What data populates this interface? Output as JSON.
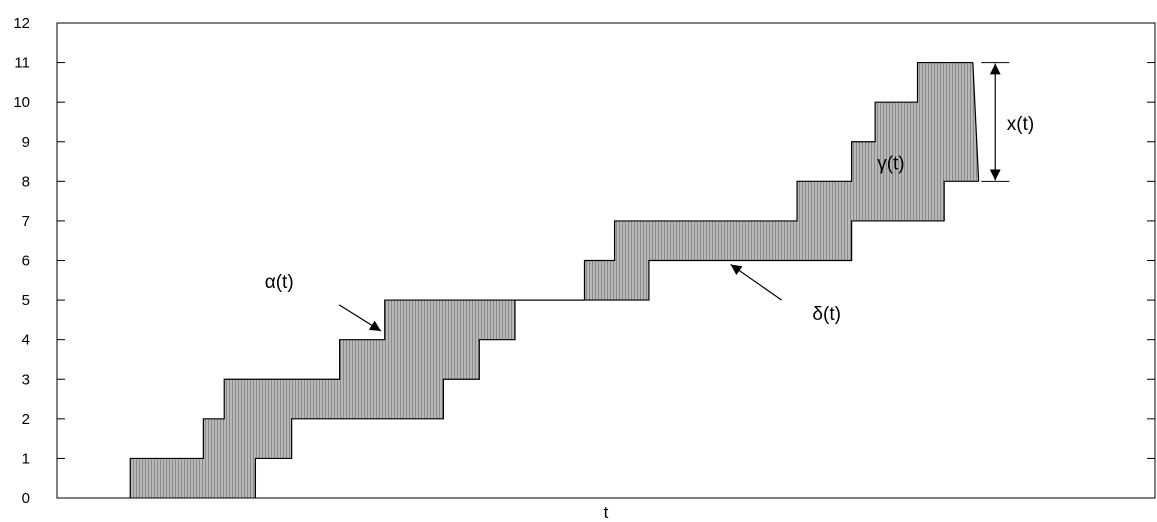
{
  "chart_data": {
    "type": "area",
    "xlabel": "t",
    "ylabel": "",
    "ylim": [
      0,
      12
    ],
    "yticks": [
      "0",
      "1",
      "2",
      "3",
      "4",
      "5",
      "6",
      "7",
      "8",
      "9",
      "10",
      "11",
      "12"
    ],
    "grid": false,
    "fill_color": "#bdbdbd",
    "hatch_color": "#8a8a8a",
    "line_color": "#000000",
    "series": [
      {
        "name": "α(t)",
        "points": [
          [
            0.0667,
            0
          ],
          [
            0.0667,
            1
          ],
          [
            0.1333,
            1
          ],
          [
            0.1333,
            2
          ],
          [
            0.1523,
            2
          ],
          [
            0.1523,
            3
          ],
          [
            0.2574,
            3
          ],
          [
            0.2574,
            4
          ],
          [
            0.2985,
            4
          ],
          [
            0.2985,
            5
          ],
          [
            0.4171,
            5
          ],
          [
            0.4804,
            5
          ],
          [
            0.4804,
            6
          ],
          [
            0.5078,
            6
          ],
          [
            0.5078,
            7
          ],
          [
            0.674,
            7
          ],
          [
            0.674,
            8
          ],
          [
            0.7237,
            8
          ],
          [
            0.7237,
            9
          ],
          [
            0.7451,
            9
          ],
          [
            0.7451,
            10
          ],
          [
            0.7837,
            10
          ],
          [
            0.7837,
            11
          ],
          [
            0.8341,
            11
          ]
        ]
      },
      {
        "name": "δ(t)",
        "points": [
          [
            0.1807,
            0
          ],
          [
            0.1807,
            1
          ],
          [
            0.2137,
            1
          ],
          [
            0.2137,
            2
          ],
          [
            0.3519,
            2
          ],
          [
            0.3519,
            3
          ],
          [
            0.3846,
            3
          ],
          [
            0.3846,
            4
          ],
          [
            0.4171,
            4
          ],
          [
            0.4171,
            5
          ],
          [
            0.5391,
            5
          ],
          [
            0.5391,
            6
          ],
          [
            0.7237,
            6
          ],
          [
            0.7237,
            7
          ],
          [
            0.808,
            7
          ],
          [
            0.808,
            8
          ],
          [
            0.8394,
            8
          ]
        ]
      }
    ],
    "annotations": [
      {
        "text": "α(t)",
        "x": 0.1892,
        "y": 5.3,
        "arrow_to": [
          0.295,
          4.22
        ],
        "arrow_from": [
          0.257,
          4.88
        ]
      },
      {
        "text": "δ(t)",
        "x": 0.688,
        "y": 4.5,
        "arrow_to": [
          0.6135,
          5.9
        ],
        "arrow_from": [
          0.66,
          5.0
        ]
      },
      {
        "text": "γ(t)",
        "x": 0.747,
        "y": 8.3
      },
      {
        "text": "x(t)",
        "x": 0.865,
        "y": 9.3,
        "double_arrow": [
          0.8545,
          8,
          11
        ]
      }
    ]
  }
}
